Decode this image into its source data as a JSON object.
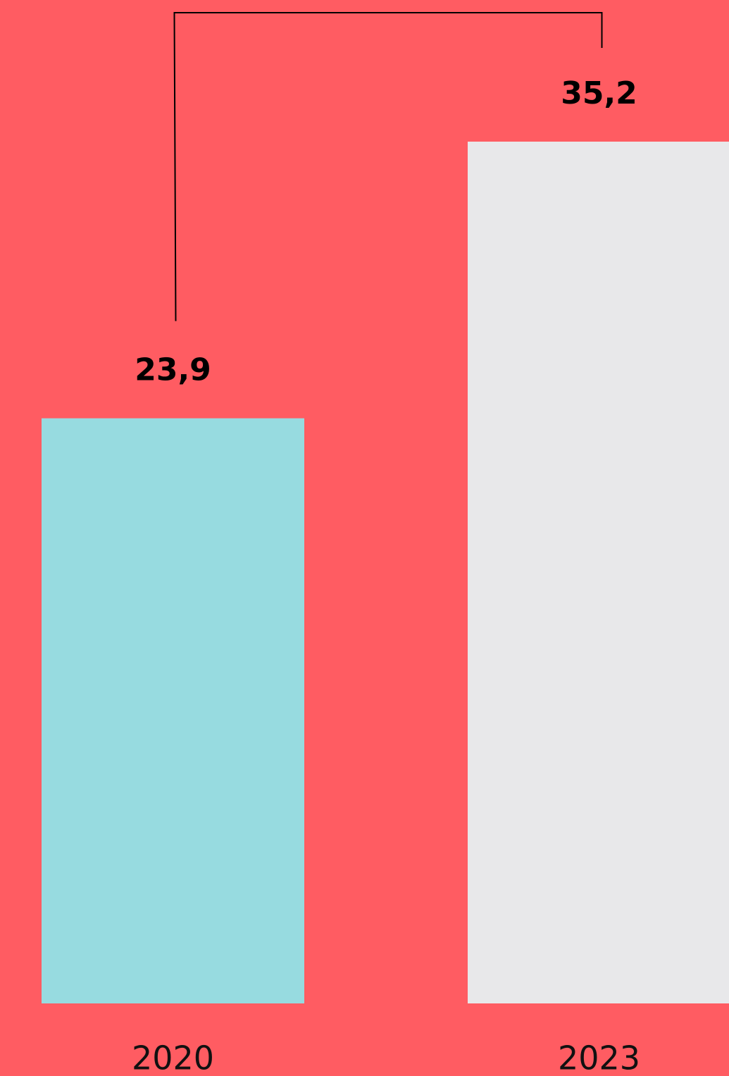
{
  "chart_data": {
    "type": "bar",
    "categories": [
      "2020",
      "2023"
    ],
    "values": [
      23.9,
      35.2
    ],
    "value_labels": [
      "23,9",
      "35,2"
    ],
    "colors": [
      "#97dbe0",
      "#e8e8ea"
    ],
    "background": "#ff5c62"
  }
}
